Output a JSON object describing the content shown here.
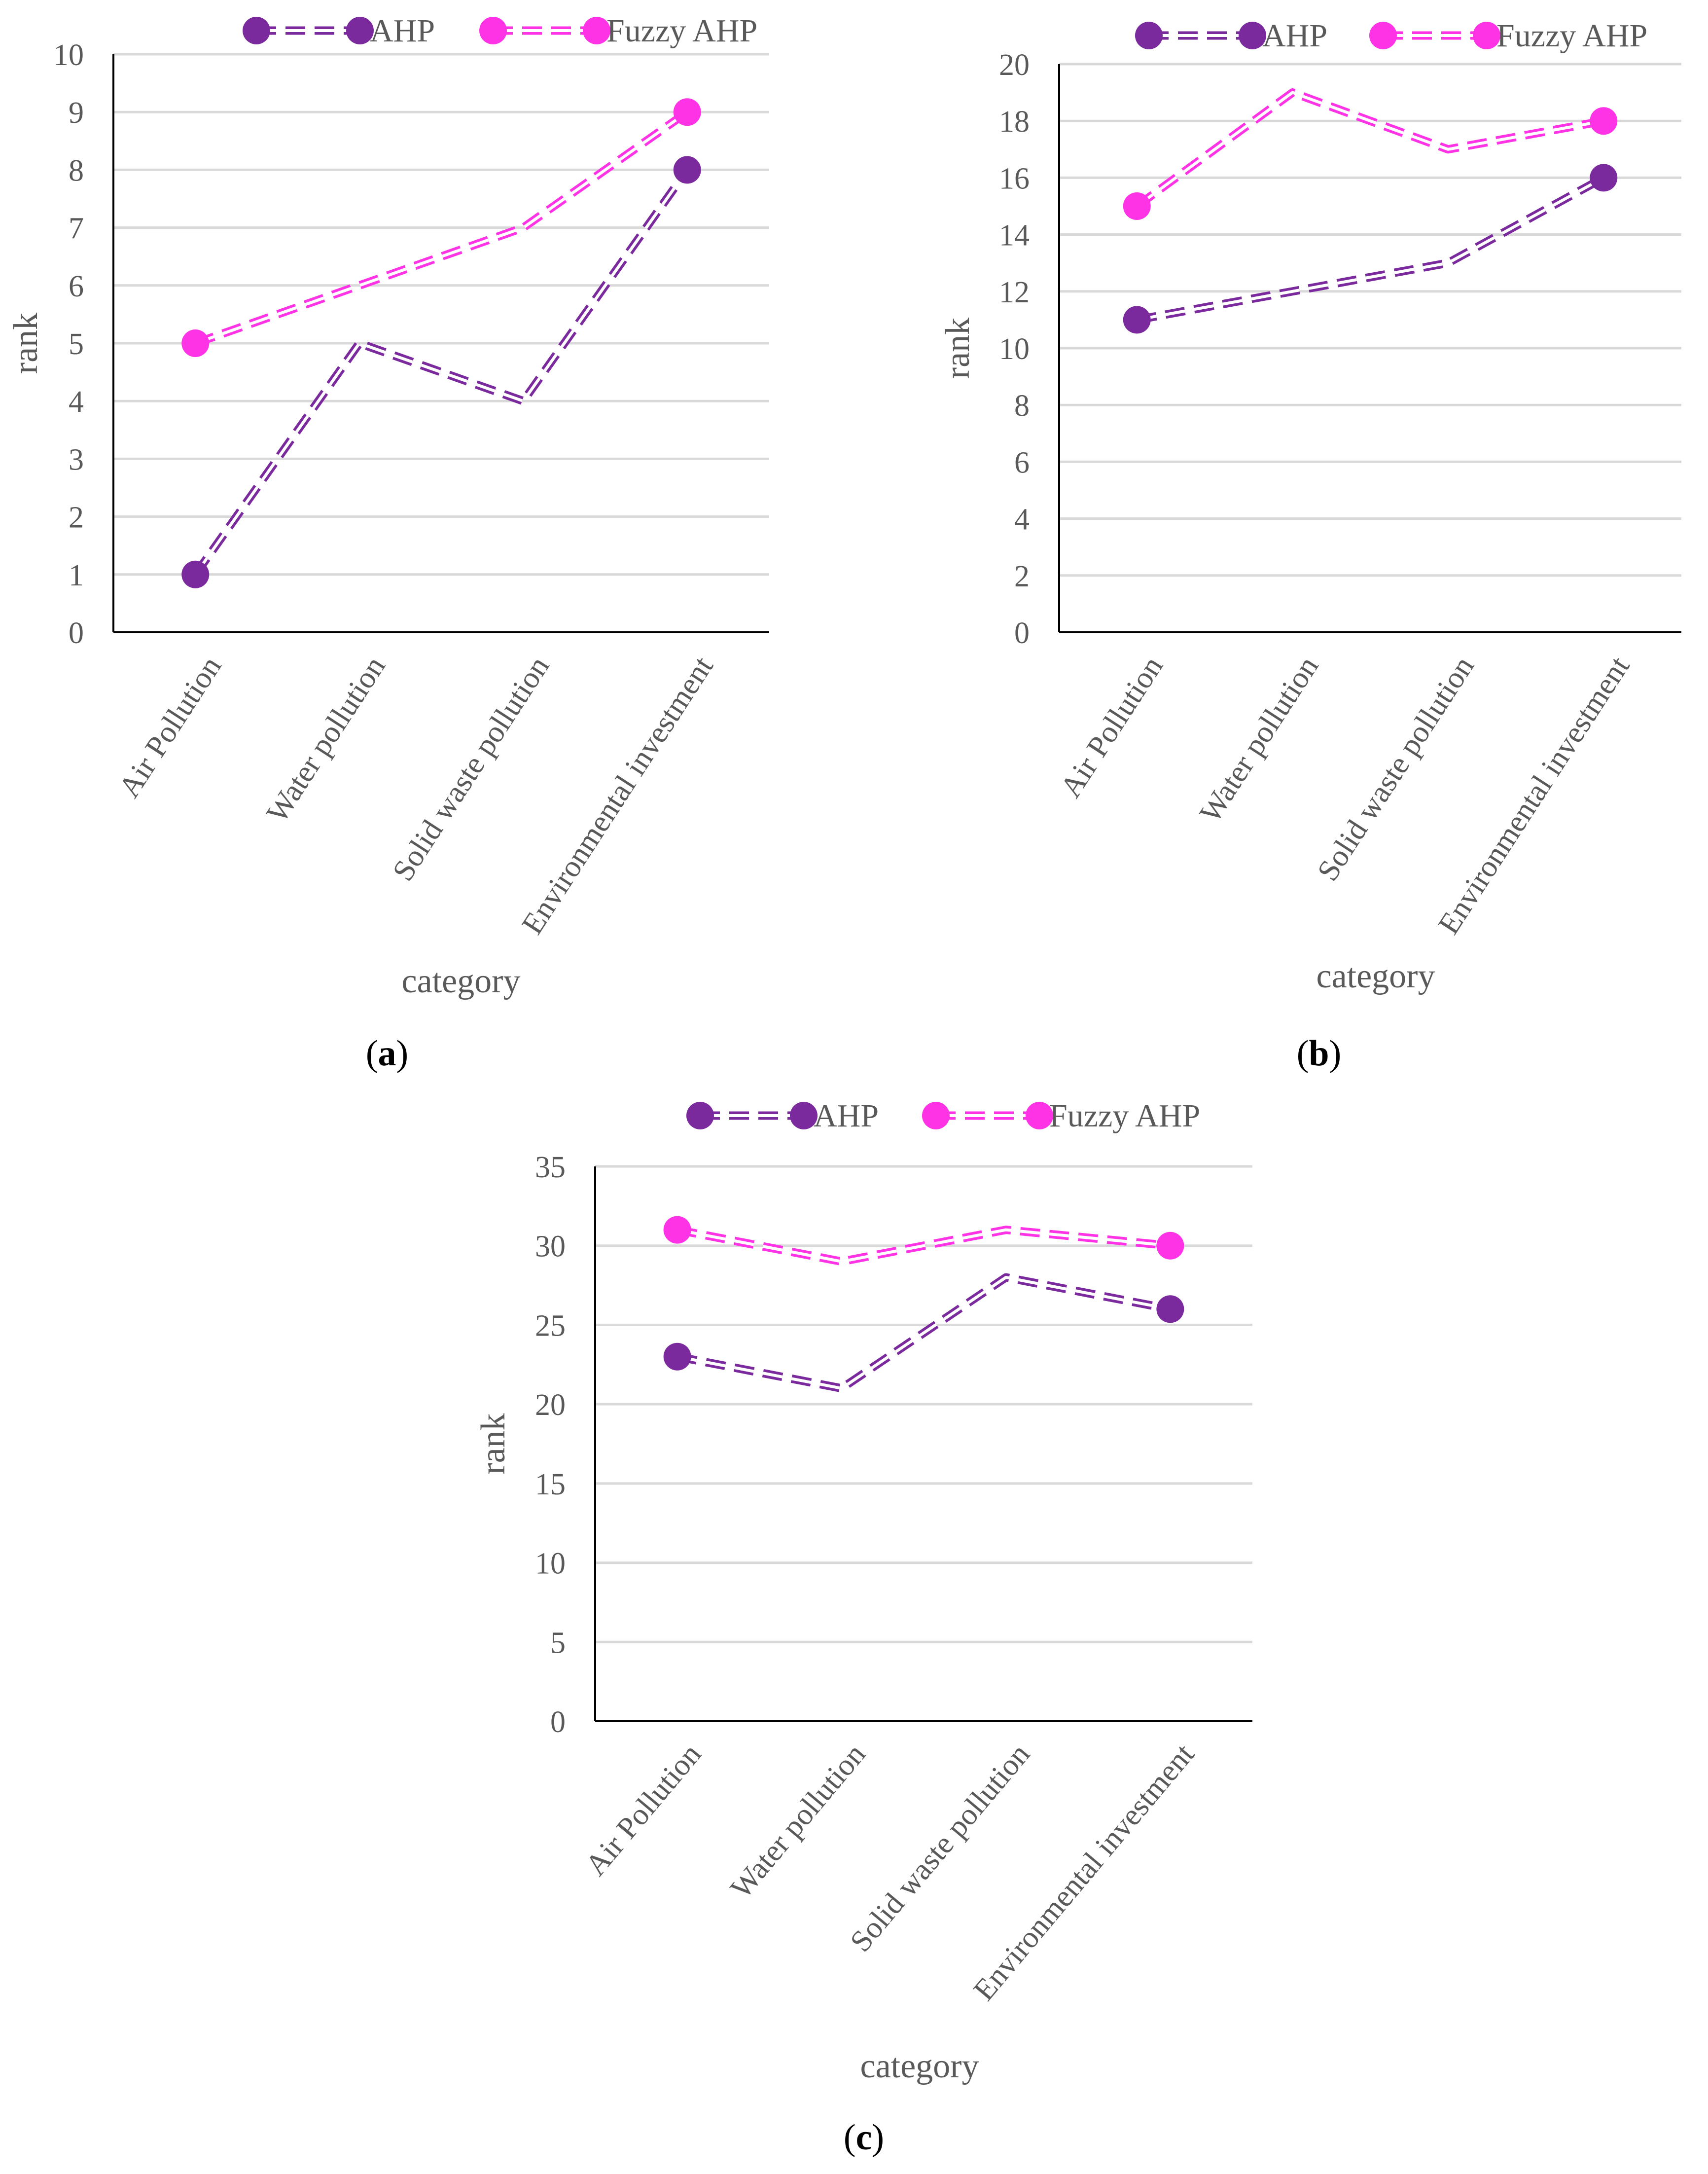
{
  "colors": {
    "ahp": "#7B2A9E",
    "fuzzy": "#FF33E6",
    "grid": "#D9D9D9",
    "axis": "#000000",
    "text": "#595959"
  },
  "chart_data": [
    {
      "panel": "a",
      "panel_label": {
        "open": "(",
        "letter": "a",
        "close": ")"
      },
      "type": "line",
      "categories": [
        "Air Pollution",
        "Water pollution",
        "Solid waste pollution",
        "Environmental investment"
      ],
      "series": [
        {
          "name": "AHP",
          "values": [
            1,
            5,
            4,
            8
          ]
        },
        {
          "name": "Fuzzy AHP",
          "values": [
            5,
            6,
            7,
            9
          ]
        }
      ],
      "xlabel": "category",
      "ylabel": "rank",
      "ylim": [
        0,
        10
      ],
      "yticks": [
        "0",
        "1",
        "2",
        "3",
        "4",
        "5",
        "6",
        "7",
        "8",
        "9",
        "10"
      ],
      "legend": "top",
      "grid": true
    },
    {
      "panel": "b",
      "panel_label": {
        "open": "(",
        "letter": "b",
        "close": ")"
      },
      "type": "line",
      "categories": [
        "Air Pollution",
        "Water pollution",
        "Solid waste pollution",
        "Environmental investment"
      ],
      "series": [
        {
          "name": "AHP",
          "values": [
            11,
            12,
            13,
            16
          ]
        },
        {
          "name": "Fuzzy AHP",
          "values": [
            15,
            19,
            17,
            18
          ]
        }
      ],
      "xlabel": "category",
      "ylabel": "rank",
      "ylim": [
        0,
        20
      ],
      "yticks": [
        "0",
        "2",
        "4",
        "6",
        "8",
        "10",
        "12",
        "14",
        "16",
        "18",
        "20"
      ],
      "legend": "top",
      "grid": true
    },
    {
      "panel": "c",
      "panel_label": {
        "open": "(",
        "letter": "c",
        "close": ")"
      },
      "type": "line",
      "categories": [
        "Air Pollution",
        "Water pollution",
        "Solid waste pollution",
        "Environmental investment"
      ],
      "series": [
        {
          "name": "AHP",
          "values": [
            23,
            21,
            28,
            26
          ]
        },
        {
          "name": "Fuzzy AHP",
          "values": [
            31,
            29,
            31,
            30
          ]
        }
      ],
      "xlabel": "category",
      "ylabel": "rank",
      "ylim": [
        0,
        35
      ],
      "yticks": [
        "0",
        "5",
        "10",
        "15",
        "20",
        "25",
        "30",
        "35"
      ],
      "legend": "top",
      "grid": true
    }
  ]
}
